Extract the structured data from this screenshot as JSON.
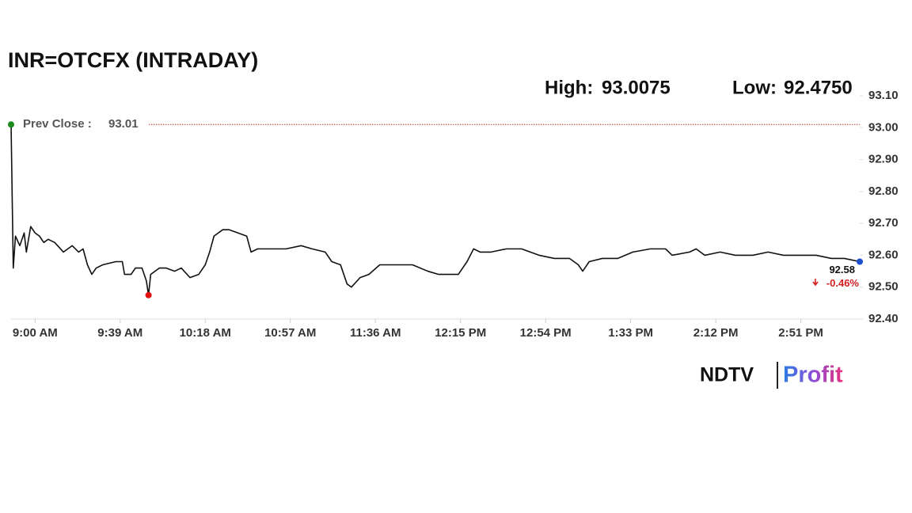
{
  "chart_data": {
    "type": "line",
    "title": "INR=OTCFX (INTRADAY)",
    "high_label": "High:",
    "high": 93.0075,
    "low_label": "Low:",
    "low": {
      "value": 92.475,
      "label": "92.4750"
    },
    "prev_close_label": "Prev Close :",
    "prev_close": 93.01,
    "prev_close_color": "#c0392b",
    "change": -0.46,
    "change_label": "-0.46%",
    "change_color": "#d61f1f",
    "x": [
      529,
      530,
      531,
      533,
      535,
      536,
      538,
      540,
      542,
      544,
      546,
      549,
      553,
      557,
      560,
      562,
      564,
      566,
      568,
      571,
      577,
      580,
      581,
      584,
      586,
      589,
      591,
      592,
      593,
      597,
      600,
      604,
      607,
      611,
      615,
      618,
      620,
      622,
      626,
      629,
      633,
      637,
      639,
      642,
      647,
      655,
      662,
      667,
      673,
      676,
      680,
      683,
      685,
      689,
      693,
      698,
      705,
      713,
      720,
      725,
      731,
      734,
      738,
      741,
      744,
      749,
      756,
      763,
      771,
      778,
      785,
      789,
      791,
      794,
      800,
      807,
      814,
      822,
      829,
      832,
      840,
      843,
      847,
      854,
      861,
      869,
      876,
      883,
      890,
      898,
      905,
      911,
      918
    ],
    "series": [
      {
        "name": "INR=OTCFX",
        "color": "#111111",
        "values": [
          93.01,
          92.56,
          92.66,
          92.63,
          92.67,
          92.61,
          92.69,
          92.67,
          92.66,
          92.64,
          92.65,
          92.64,
          92.61,
          92.63,
          92.61,
          92.62,
          92.57,
          92.54,
          92.56,
          92.57,
          92.58,
          92.58,
          92.54,
          92.54,
          92.56,
          92.56,
          92.52,
          92.475,
          92.54,
          92.56,
          92.56,
          92.55,
          92.56,
          92.53,
          92.54,
          92.57,
          92.61,
          92.66,
          92.68,
          92.68,
          92.67,
          92.66,
          92.61,
          92.62,
          92.62,
          92.62,
          92.63,
          92.62,
          92.61,
          92.58,
          92.57,
          92.51,
          92.5,
          92.53,
          92.54,
          92.57,
          92.57,
          92.57,
          92.55,
          92.54,
          92.54,
          92.54,
          92.58,
          92.62,
          92.61,
          92.61,
          92.62,
          92.62,
          92.6,
          92.59,
          92.59,
          92.57,
          92.55,
          92.58,
          92.59,
          92.59,
          92.61,
          92.62,
          92.62,
          92.6,
          92.61,
          92.62,
          92.6,
          92.61,
          92.6,
          92.6,
          92.61,
          92.6,
          92.6,
          92.6,
          92.59,
          92.59,
          92.58
        ]
      }
    ],
    "start_color": "#1a8a1a",
    "low_color": "#e01010",
    "last_color": "#1f4fd1",
    "xlim": [
      529,
      918
    ],
    "xticks": [
      {
        "value": 540,
        "label": "9:00 AM"
      },
      {
        "value": 579,
        "label": "9:39 AM"
      },
      {
        "value": 618,
        "label": "10:18 AM"
      },
      {
        "value": 657,
        "label": "10:57 AM"
      },
      {
        "value": 696,
        "label": "11:36 AM"
      },
      {
        "value": 735,
        "label": "12:15 PM"
      },
      {
        "value": 774,
        "label": "12:54 PM"
      },
      {
        "value": 813,
        "label": "1:33 PM"
      },
      {
        "value": 852,
        "label": "2:12 PM"
      },
      {
        "value": 891,
        "label": "2:51 PM"
      }
    ],
    "ylim": [
      92.4,
      93.1
    ],
    "yticks": [
      {
        "value": 92.4,
        "label": "92.40"
      },
      {
        "value": 92.5,
        "label": "92.50"
      },
      {
        "value": 92.6,
        "label": "92.60"
      },
      {
        "value": 92.7,
        "label": "92.70"
      },
      {
        "value": 92.8,
        "label": "92.80"
      },
      {
        "value": 92.9,
        "label": "92.90"
      },
      {
        "value": 93.0,
        "label": "93.00"
      },
      {
        "value": 93.1,
        "label": "93.10"
      }
    ],
    "logo_left": "NDTV",
    "logo_right": "Profit"
  }
}
